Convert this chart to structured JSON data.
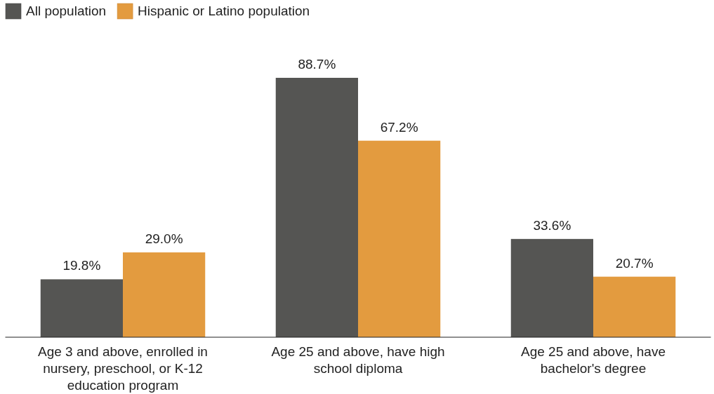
{
  "chart_data": {
    "type": "bar",
    "categories": [
      "Age 3 and above, enrolled in nursery, preschool, or K-12 education program",
      "Age 25 and above, have high school diploma",
      "Age 25 and above, have bachelor's degree"
    ],
    "series": [
      {
        "name": "All population",
        "color": "#555553",
        "values": [
          19.8,
          88.7,
          33.6
        ],
        "value_labels": [
          "19.8%",
          "88.7%",
          "33.6%"
        ]
      },
      {
        "name": "Hispanic or Latino population",
        "color": "#e39b3f",
        "values": [
          29.0,
          67.2,
          20.7
        ],
        "value_labels": [
          "29.0%",
          "67.2%",
          "20.7%"
        ]
      }
    ],
    "legend": "top left"
  }
}
